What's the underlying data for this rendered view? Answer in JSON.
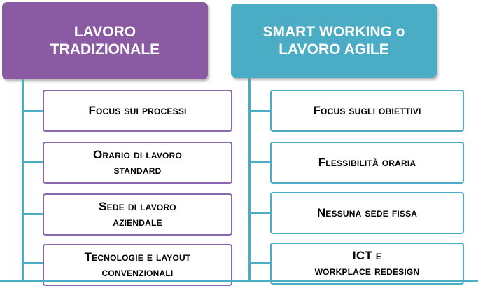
{
  "colors": {
    "left_header": "#8a5aa2",
    "right_header": "#4bacc6",
    "left_box_border": "#8a68ae",
    "right_box_border": "#4bacc6",
    "connector": "#4bacc6"
  },
  "left": {
    "title_line1": "LAVORO",
    "title_line2": "TRADIZIONALE",
    "items": [
      {
        "line1": "Focus sui processi",
        "line2": ""
      },
      {
        "line1": "Orario di lavoro",
        "line2": "standard"
      },
      {
        "line1": "Sede di lavoro",
        "line2": "aziendale"
      },
      {
        "line1": "Tecnologie e layout",
        "line2": "convenzionali"
      }
    ]
  },
  "right": {
    "title_line1": "SMART WORKING o",
    "title_line2": "LAVORO AGILE",
    "items": [
      {
        "line1": "Focus sugli obiettivi",
        "line2": ""
      },
      {
        "line1": "Flessibilità oraria",
        "line2": ""
      },
      {
        "line1": "Nessuna sede fissa",
        "line2": ""
      },
      {
        "line1": "ICT e",
        "line2": "workplace redesign"
      }
    ]
  }
}
